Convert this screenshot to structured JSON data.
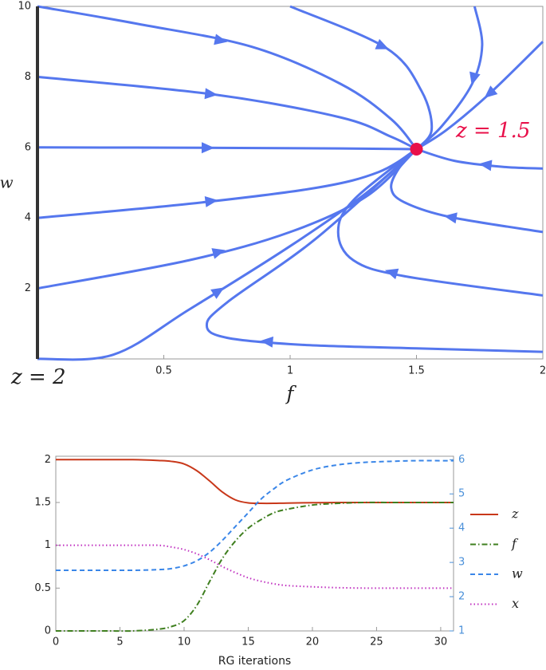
{
  "chart_data": [
    {
      "type": "streamplot",
      "xlabel": "f",
      "ylabel": "w",
      "xlim": [
        0,
        2
      ],
      "ylim": [
        0,
        10
      ],
      "xticks": [
        0.5,
        1,
        1.5,
        2
      ],
      "yticks": [
        2,
        4,
        6,
        8,
        10
      ],
      "color": "#5577ee",
      "streamlines": [
        {
          "x": [
            0,
            0.4,
            0.85,
            1.2,
            1.4,
            1.5
          ],
          "y": [
            10,
            9.5,
            8.85,
            7.8,
            6.8,
            5.95
          ]
        },
        {
          "x": [
            0,
            0.7,
            1.2,
            1.4,
            1.5
          ],
          "y": [
            8,
            7.5,
            6.85,
            6.3,
            5.95
          ]
        },
        {
          "x": [
            0,
            0.65,
            1.2,
            1.5
          ],
          "y": [
            6,
            5.99,
            5.97,
            5.95
          ]
        },
        {
          "x": [
            0,
            0.6,
            1.1,
            1.35,
            1.5
          ],
          "y": [
            4,
            4.4,
            4.85,
            5.3,
            5.95
          ]
        },
        {
          "x": [
            0,
            0.6,
            1.0,
            1.3,
            1.5
          ],
          "y": [
            2,
            2.8,
            3.6,
            4.6,
            5.95
          ]
        },
        {
          "x": [
            0,
            0.3,
            0.6,
            1.0,
            1.3,
            1.5
          ],
          "y": [
            0,
            0.12,
            1.4,
            3.2,
            4.7,
            5.95
          ]
        },
        {
          "x": [
            2,
            1.5,
            1.05,
            0.75,
            0.67,
            0.75,
            1.1,
            1.5
          ],
          "y": [
            0.2,
            0.3,
            0.4,
            0.6,
            0.95,
            1.6,
            3.4,
            5.95
          ]
        },
        {
          "x": [
            2,
            1.45,
            1.25,
            1.19,
            1.25,
            1.5
          ],
          "y": [
            1.8,
            2.35,
            2.8,
            3.6,
            4.5,
            5.95
          ]
        },
        {
          "x": [
            2,
            1.63,
            1.45,
            1.4,
            1.43,
            1.5
          ],
          "y": [
            3.6,
            4.03,
            4.45,
            4.85,
            5.4,
            5.95
          ]
        },
        {
          "x": [
            2,
            1.84,
            1.65,
            1.5
          ],
          "y": [
            5.4,
            5.45,
            5.62,
            5.95
          ]
        },
        {
          "x": [
            2,
            1.79,
            1.62,
            1.5
          ],
          "y": [
            9,
            7.53,
            6.5,
            5.95
          ]
        },
        {
          "x": [
            1.73,
            1.76,
            1.72,
            1.6,
            1.5
          ],
          "y": [
            10,
            8.9,
            7.8,
            6.6,
            5.95
          ]
        },
        {
          "x": [
            1.0,
            1.38,
            1.52,
            1.56,
            1.5
          ],
          "y": [
            10,
            8.82,
            7.6,
            6.5,
            5.95
          ]
        }
      ],
      "fixed_point": {
        "x": 1.5,
        "y": 5.95,
        "label": "z = 1.5",
        "color": "#e8104a"
      },
      "fixed_line": {
        "x": [
          0,
          0
        ],
        "y": [
          0,
          10
        ],
        "label": "z = 2",
        "color": "#333333"
      }
    },
    {
      "type": "line",
      "xlabel": "RG iterations",
      "x": [
        0,
        2,
        4,
        6,
        8,
        9,
        10,
        11,
        12,
        13,
        14,
        15,
        16,
        17,
        18,
        20,
        22,
        24,
        26,
        28,
        30,
        31
      ],
      "xlim": [
        0,
        31
      ],
      "xticks": [
        0,
        5,
        10,
        15,
        20,
        25,
        30
      ],
      "ylim": [
        0,
        2.04
      ],
      "yticks": [
        0,
        0.5,
        1,
        1.5,
        2
      ],
      "y2lim": [
        1,
        6.1
      ],
      "y2ticks": [
        1,
        2,
        3,
        4,
        5,
        6
      ],
      "y2color": "#4a90d9",
      "series": [
        {
          "name": "z",
          "color": "#c8381a",
          "dash": "solid",
          "values": [
            2,
            2,
            2,
            2,
            1.99,
            1.98,
            1.95,
            1.87,
            1.75,
            1.62,
            1.53,
            1.495,
            1.49,
            1.49,
            1.493,
            1.497,
            1.5,
            1.5,
            1.5,
            1.5,
            1.5,
            1.5
          ]
        },
        {
          "name": "f",
          "color": "#3f7f1f",
          "dash": "dashdot",
          "values": [
            0,
            0,
            0,
            0,
            0.02,
            0.05,
            0.12,
            0.3,
            0.58,
            0.85,
            1.05,
            1.2,
            1.3,
            1.38,
            1.42,
            1.47,
            1.49,
            1.5,
            1.5,
            1.5,
            1.5,
            1.5
          ]
        },
        {
          "name": "w",
          "color": "#3a86e8",
          "dash": "dashed",
          "axis": "y2",
          "values": [
            2.77,
            2.77,
            2.77,
            2.77,
            2.79,
            2.82,
            2.9,
            3.05,
            3.3,
            3.65,
            4.05,
            4.45,
            4.85,
            5.15,
            5.4,
            5.7,
            5.85,
            5.92,
            5.95,
            5.97,
            5.97,
            5.97
          ]
        },
        {
          "name": "x",
          "color": "#c030c0",
          "dash": "dotted",
          "values": [
            1,
            1,
            1,
            1,
            1,
            0.98,
            0.95,
            0.9,
            0.83,
            0.75,
            0.68,
            0.62,
            0.58,
            0.55,
            0.53,
            0.515,
            0.505,
            0.5,
            0.5,
            0.5,
            0.5,
            0.5
          ]
        }
      ]
    }
  ]
}
